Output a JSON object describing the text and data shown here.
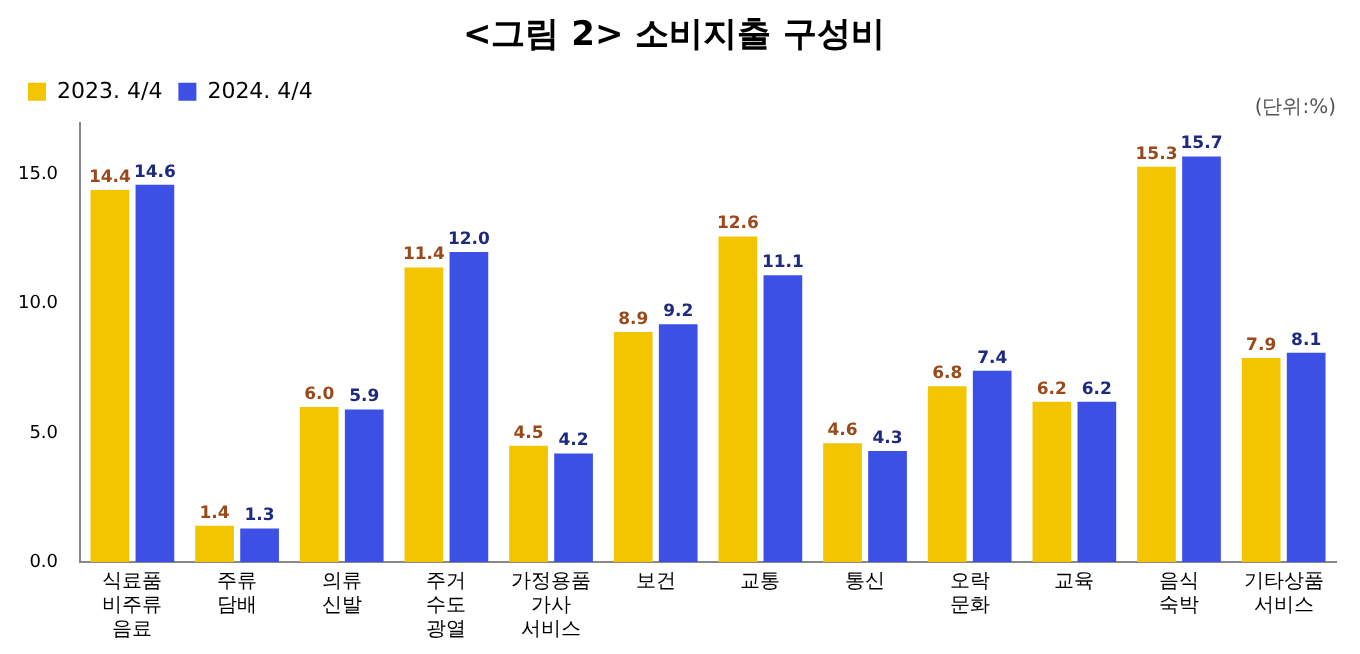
{
  "chart_data": {
    "type": "bar",
    "title": "<그림 2> 소비지출 구성비",
    "annotations": [
      "(단위:%)"
    ],
    "categories": [
      "식료품\n비주류\n음료",
      "주류\n담배",
      "의류\n신발",
      "주거\n수도\n광열",
      "가정용품\n가사\n서비스",
      "보건",
      "교통",
      "통신",
      "오락\n문화",
      "교육",
      "음식\n숙박",
      "기타상품\n서비스"
    ],
    "series": [
      {
        "name": "2023. 4/4",
        "color": "#f2c500",
        "values": [
          14.4,
          1.4,
          6.0,
          11.4,
          4.5,
          8.9,
          12.6,
          4.6,
          6.8,
          6.2,
          15.3,
          7.9
        ],
        "value_labels": [
          "14.4",
          "1.4",
          "6.0",
          "11.4",
          "4.5",
          "8.9",
          "12.6",
          "4.6",
          "6.8",
          "6.2",
          "15.3",
          "7.9"
        ]
      },
      {
        "name": "2024. 4/4",
        "color": "#3c50e6",
        "values": [
          14.6,
          1.3,
          5.9,
          12.0,
          4.2,
          9.2,
          11.1,
          4.3,
          7.4,
          6.2,
          15.7,
          8.1
        ],
        "value_labels": [
          "14.6",
          "1.3",
          "5.9",
          "12.0",
          "4.2",
          "9.2",
          "11.1",
          "4.3",
          "7.4",
          "6.2",
          "15.7",
          "8.1"
        ]
      }
    ],
    "ylim": [
      0,
      17
    ],
    "yticks": [
      {
        "value": 0,
        "label": "0.0"
      },
      {
        "value": 5,
        "label": "5.0"
      },
      {
        "value": 10,
        "label": "10.0"
      },
      {
        "value": 15,
        "label": "15.0"
      }
    ],
    "grid": false,
    "legend": "top left"
  }
}
